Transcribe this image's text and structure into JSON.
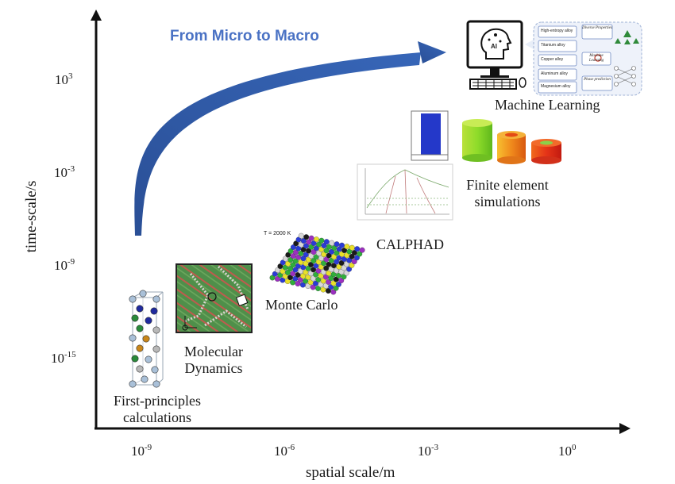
{
  "title": "From Micro to Macro",
  "axes": {
    "x_label": "spatial scale/m",
    "y_label": "time-scale/s",
    "x_ticks": [
      {
        "base": "10",
        "exp": "-9"
      },
      {
        "base": "10",
        "exp": "-6"
      },
      {
        "base": "10",
        "exp": "-3"
      },
      {
        "base": "10",
        "exp": "0"
      }
    ],
    "y_ticks": [
      {
        "base": "10",
        "exp": "3"
      },
      {
        "base": "10",
        "exp": "-3"
      },
      {
        "base": "10",
        "exp": "-9"
      },
      {
        "base": "10",
        "exp": "-15"
      }
    ]
  },
  "methods": {
    "first_principles": {
      "line1": "First-principles",
      "line2": "calculations"
    },
    "molecular_dynamics": {
      "line1": "Molecular",
      "line2": "Dynamics"
    },
    "monte_carlo": {
      "label": "Monte Carlo",
      "temp": "T = 2000 K"
    },
    "calphad": {
      "label": "CALPHAD"
    },
    "fem": {
      "line1": "Finite element",
      "line2": "simulations"
    },
    "ml": {
      "label": "Machine Learning",
      "ai": "AI",
      "alloys": [
        "High-entropy alloy",
        "Titanium alloy",
        "Copper alloy",
        "Aluminum alloy",
        "Magnesium alloy"
      ],
      "boxes": [
        "Diverse Properties",
        "Machine Learning",
        "Phase prediction"
      ]
    }
  },
  "colors": {
    "arrow": "#2f5ba8",
    "title": "#4a72c4",
    "axis": "#111111"
  }
}
